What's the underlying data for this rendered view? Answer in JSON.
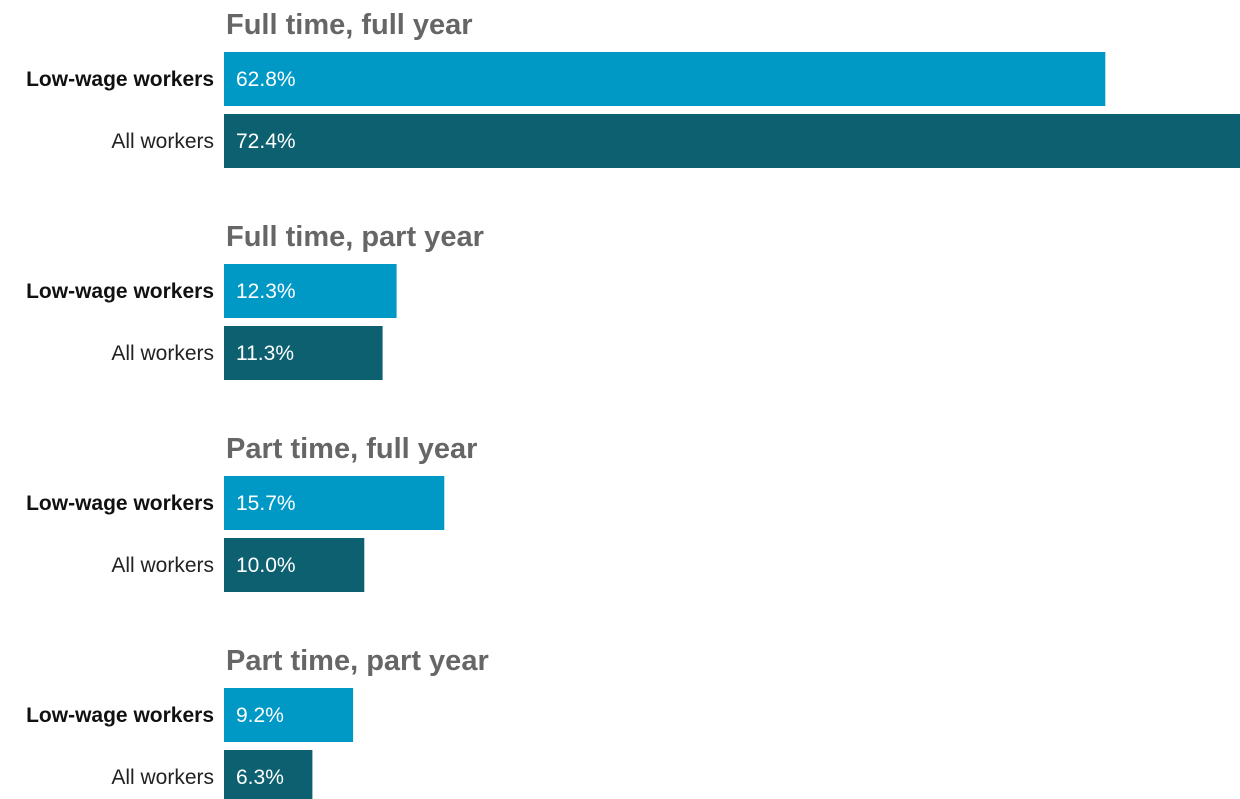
{
  "chart_data": {
    "type": "bar",
    "orientation": "horizontal",
    "groups": [
      "Full time, full year",
      "Full time, part year",
      "Part time, full year",
      "Part time, part year"
    ],
    "series": [
      {
        "name": "Low-wage workers",
        "color": "#0099c6",
        "values": [
          62.8,
          12.3,
          15.7,
          9.2
        ],
        "labels": [
          "62.8%",
          "12.3%",
          "15.7%",
          "9.2%"
        ]
      },
      {
        "name": "All workers",
        "color": "#0c6070",
        "values": [
          72.4,
          11.3,
          10.0,
          6.3
        ],
        "labels": [
          "72.4%",
          "11.3%",
          "10.0%",
          "6.3%"
        ]
      }
    ],
    "xlim": [
      0,
      72.4
    ],
    "grid": false,
    "legend": "none"
  }
}
